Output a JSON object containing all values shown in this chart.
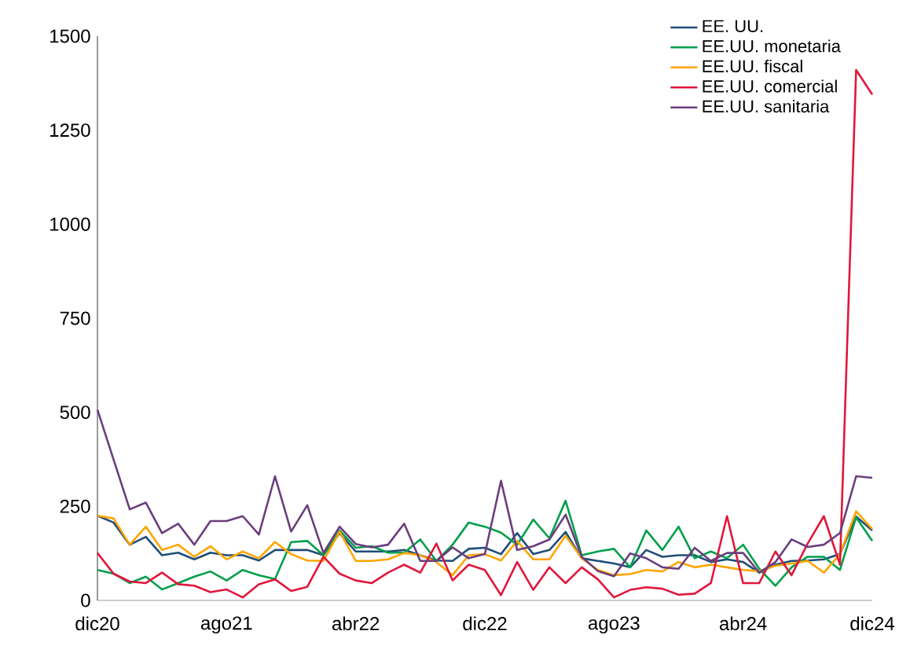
{
  "chart_data": {
    "type": "line",
    "categories": [
      "dic20",
      null,
      null,
      null,
      null,
      null,
      null,
      null,
      "ago21",
      null,
      null,
      null,
      null,
      null,
      null,
      null,
      "abr22",
      null,
      null,
      null,
      null,
      null,
      null,
      null,
      "dic22",
      null,
      null,
      null,
      null,
      null,
      null,
      null,
      "ago23",
      null,
      null,
      null,
      null,
      null,
      null,
      null,
      "abr24",
      null,
      null,
      null,
      null,
      null,
      null,
      null,
      "dic24"
    ],
    "series": [
      {
        "name": "EE. UU.",
        "color": "#1f4e79",
        "values": [
          225,
          207,
          148,
          169,
          120,
          127,
          109,
          127,
          120,
          120,
          106,
          134,
          134,
          134,
          120,
          179,
          130,
          130,
          130,
          134,
          120,
          106,
          105,
          137,
          140,
          123,
          179,
          123,
          134,
          182,
          112,
          105,
          98,
          88,
          134,
          116,
          120,
          120,
          102,
          109,
          102,
          74,
          95,
          105,
          106,
          109,
          123,
          223,
          186
        ]
      },
      {
        "name": "EE.UU. monetaria",
        "color": "#00a04b",
        "values": [
          81,
          71,
          46,
          63,
          29,
          46,
          63,
          77,
          53,
          81,
          67,
          57,
          155,
          158,
          120,
          186,
          140,
          144,
          127,
          127,
          162,
          105,
          148,
          207,
          196,
          180,
          148,
          215,
          165,
          265,
          120,
          130,
          137,
          88,
          186,
          134,
          196,
          112,
          130,
          112,
          148,
          84,
          39,
          88,
          116,
          116,
          81,
          221,
          158
        ]
      },
      {
        "name": "EE.UU. fiscal",
        "color": "#ffa500",
        "values": [
          225,
          218,
          148,
          196,
          134,
          148,
          116,
          144,
          109,
          130,
          112,
          155,
          123,
          106,
          105,
          183,
          105,
          105,
          109,
          126,
          120,
          102,
          67,
          120,
          123,
          106,
          158,
          109,
          109,
          172,
          112,
          81,
          67,
          70,
          81,
          77,
          102,
          88,
          95,
          88,
          81,
          78,
          92,
          98,
          105,
          74,
          123,
          237,
          190
        ]
      },
      {
        "name": "EE.UU. comercial",
        "color": "#e0173c",
        "values": [
          126,
          71,
          50,
          46,
          74,
          43,
          39,
          22,
          29,
          8,
          43,
          56,
          25,
          36,
          116,
          71,
          53,
          46,
          74,
          95,
          74,
          151,
          53,
          95,
          81,
          14,
          102,
          28,
          88,
          46,
          88,
          56,
          8,
          28,
          35,
          31,
          15,
          18,
          46,
          224,
          46,
          46,
          130,
          67,
          151,
          224,
          95,
          1410,
          1345
        ]
      },
      {
        "name": "EE.UU. sanitaria",
        "color": "#6b3e7e",
        "values": [
          507,
          374,
          242,
          260,
          179,
          204,
          148,
          211,
          211,
          224,
          175,
          330,
          183,
          253,
          126,
          196,
          150,
          141,
          148,
          204,
          105,
          105,
          141,
          112,
          123,
          318,
          134,
          144,
          162,
          228,
          116,
          78,
          64,
          125,
          112,
          88,
          84,
          140,
          105,
          126,
          126,
          74,
          102,
          162,
          142,
          148,
          179,
          330,
          326
        ]
      }
    ],
    "ylim": [
      0,
      1500
    ],
    "yticks": [
      0,
      250,
      500,
      750,
      1000,
      1250,
      1500
    ],
    "legend": "top right",
    "grid": false,
    "marker": "none",
    "line_style": "solid"
  }
}
